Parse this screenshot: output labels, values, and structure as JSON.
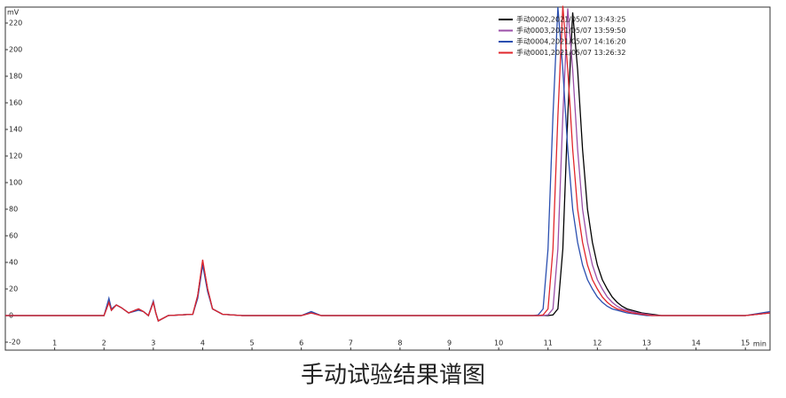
{
  "chart_data": {
    "type": "line",
    "caption": "手动试验结果谱图",
    "y_label": "mV",
    "x_label": "min",
    "xlim": [
      0,
      15.5
    ],
    "ylim": [
      -26,
      232
    ],
    "xticks": [
      1,
      2,
      3,
      4,
      5,
      6,
      7,
      8,
      9,
      10,
      11,
      12,
      13,
      14,
      15
    ],
    "yticks": [
      -20,
      0,
      20,
      40,
      60,
      80,
      100,
      120,
      140,
      160,
      180,
      200,
      220
    ],
    "legend": "upper right",
    "x": [
      0,
      2.0,
      2.1,
      2.15,
      2.25,
      2.35,
      2.5,
      2.7,
      2.8,
      2.9,
      3.0,
      3.05,
      3.1,
      3.3,
      3.8,
      3.9,
      4.0,
      4.1,
      4.2,
      4.4,
      4.8,
      6.0,
      6.2,
      6.4,
      7.0,
      10.0,
      10.7,
      10.8,
      10.9,
      11.0,
      11.1,
      11.2,
      11.3,
      11.4,
      11.5,
      11.6,
      11.7,
      11.8,
      11.9,
      12.0,
      12.1,
      12.2,
      12.3,
      12.4,
      12.5,
      12.6,
      12.7,
      12.8,
      12.9,
      13.0,
      13.1,
      13.2,
      13.3,
      13.4,
      13.5,
      14.0,
      15.0,
      15.5
    ],
    "series": [
      {
        "name": "手动0002,2021/05/07 13:43:25",
        "color": "#000000",
        "values": [
          0,
          0,
          10,
          4,
          8,
          6,
          2,
          5,
          3,
          0,
          10,
          2,
          -4,
          0,
          1,
          15,
          40,
          20,
          5,
          1,
          0,
          0,
          2,
          0,
          0,
          0,
          0,
          0,
          0,
          0,
          0.5,
          5,
          50,
          150,
          228,
          185,
          125,
          80,
          55,
          38,
          27,
          20,
          14,
          10,
          7,
          5,
          4,
          3,
          2,
          1.5,
          1,
          0.5,
          0,
          0,
          0,
          0,
          0,
          2
        ]
      },
      {
        "name": "手动0003,2021/05/07 13:59:50",
        "color": "#9b4fa8",
        "values": [
          0,
          0,
          10,
          4,
          8,
          6,
          2,
          5,
          3,
          0,
          10,
          2,
          -4,
          0,
          1,
          15,
          40,
          20,
          5,
          1,
          0,
          0,
          2,
          0,
          0,
          0,
          0,
          0,
          0,
          0.5,
          5,
          50,
          150,
          231,
          185,
          125,
          80,
          55,
          38,
          27,
          20,
          14,
          10,
          7,
          5,
          4,
          3,
          2,
          1.5,
          1,
          0.5,
          0,
          0,
          0,
          0,
          0,
          0,
          2
        ]
      },
      {
        "name": "手动0004,2021/05/07 14:16:20",
        "color": "#2b4fb0",
        "values": [
          0,
          0,
          13,
          5,
          8,
          6,
          2,
          4,
          3,
          0,
          11,
          2,
          -4,
          0,
          1,
          13,
          38,
          18,
          5,
          1,
          0,
          0,
          3,
          0,
          0,
          0,
          0,
          0.5,
          5,
          50,
          150,
          232,
          185,
          125,
          80,
          55,
          38,
          27,
          20,
          14,
          10,
          7,
          5,
          4,
          3,
          2,
          1.5,
          1,
          0.5,
          0,
          0,
          0,
          0,
          0,
          0,
          0,
          0,
          3
        ]
      },
      {
        "name": "手动0001,2021/05/07 13:26:32",
        "color": "#e0262b",
        "values": [
          0,
          0,
          10,
          4,
          8,
          6,
          2,
          5,
          3,
          0,
          10,
          2,
          -4,
          0,
          1,
          15,
          42,
          20,
          5,
          1,
          0,
          0,
          2,
          0,
          0,
          0,
          0,
          0,
          0.5,
          5,
          50,
          150,
          233,
          185,
          125,
          80,
          55,
          38,
          27,
          20,
          14,
          10,
          7,
          5,
          4,
          3,
          2,
          1.5,
          1,
          0.5,
          0,
          0,
          0,
          0,
          0,
          0,
          0,
          2
        ]
      }
    ]
  }
}
